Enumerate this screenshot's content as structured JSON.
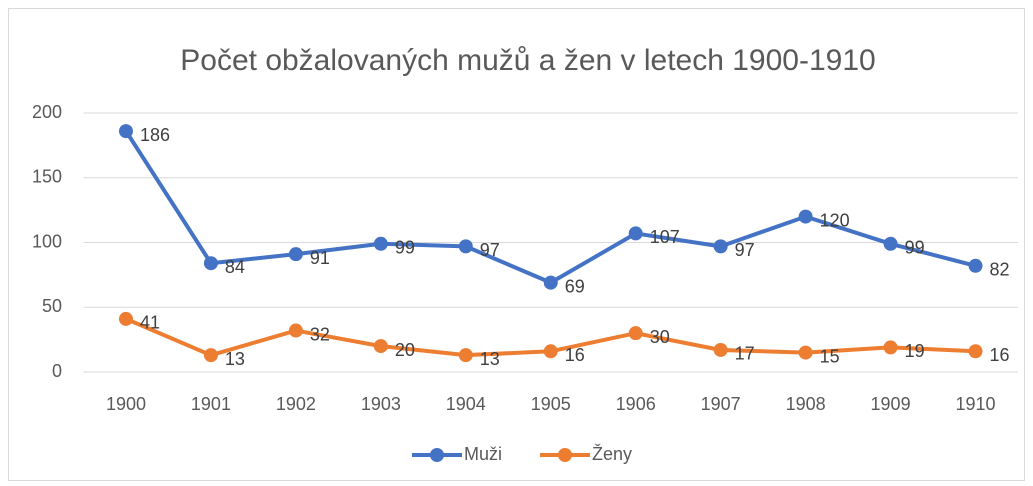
{
  "chart_data": {
    "type": "line",
    "title": "Počet obžalovaných mužů a žen v letech 1900-1910",
    "categories": [
      "1900",
      "1901",
      "1902",
      "1903",
      "1904",
      "1905",
      "1906",
      "1907",
      "1908",
      "1909",
      "1910"
    ],
    "series": [
      {
        "name": "Muži",
        "color": "#4472c4",
        "values": [
          186,
          84,
          91,
          99,
          97,
          69,
          107,
          97,
          120,
          99,
          82
        ]
      },
      {
        "name": "Ženy",
        "color": "#ed7d31",
        "values": [
          41,
          13,
          32,
          20,
          13,
          16,
          30,
          17,
          15,
          19,
          16
        ]
      }
    ],
    "ylim": [
      0,
      200
    ],
    "yticks": [
      0,
      50,
      100,
      150,
      200
    ],
    "grid": true,
    "legend": "bottom"
  }
}
